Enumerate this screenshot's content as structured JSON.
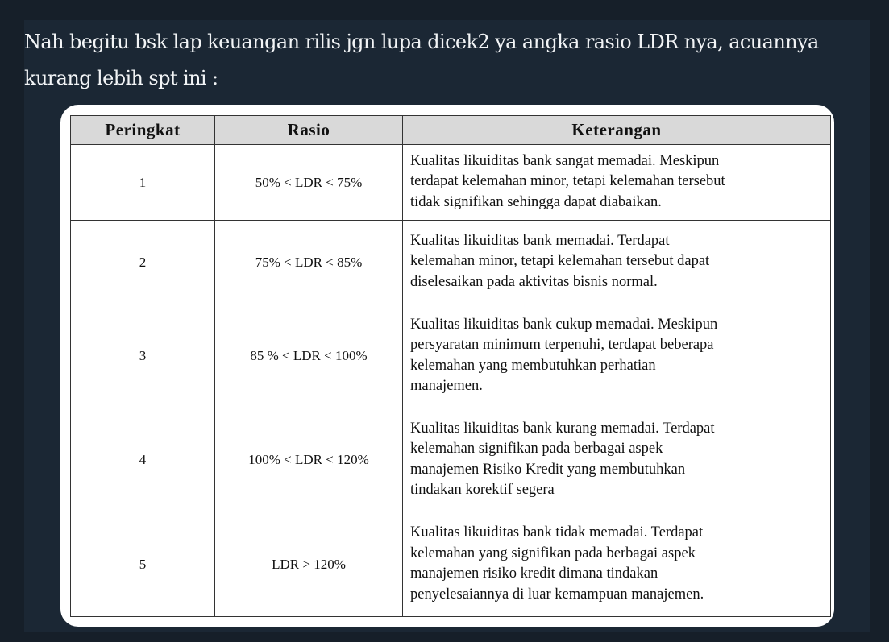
{
  "tweet": {
    "text_lines": [
      "Nah begitu bsk lap keuangan rilis jgn lupa dicek2 ya angka rasio LDR nya, acuannya",
      "kurang lebih spt ini :"
    ]
  },
  "table": {
    "headers": [
      "Peringkat",
      "Rasio",
      "Keterangan"
    ],
    "rows": [
      {
        "rank": "1",
        "ratio": "50% < LDR < 75%",
        "desc": [
          "Kualitas likuiditas bank sangat memadai. Meskipun",
          "terdapat kelemahan minor, tetapi kelemahan tersebut",
          "tidak signifikan sehingga dapat diabaikan."
        ]
      },
      {
        "rank": "2",
        "ratio": "75% < LDR < 85%",
        "desc": [
          "Kualitas likuiditas bank memadai. Terdapat",
          "kelemahan minor, tetapi kelemahan tersebut dapat",
          "diselesaikan pada aktivitas bisnis normal."
        ]
      },
      {
        "rank": "3",
        "ratio": "85 % < LDR < 100%",
        "desc": [
          "Kualitas likuiditas bank cukup memadai. Meskipun",
          "persyaratan minimum terpenuhi, terdapat beberapa",
          "kelemahan yang membutuhkan perhatian",
          "manajemen."
        ]
      },
      {
        "rank": "4",
        "ratio": "100% < LDR < 120%",
        "desc": [
          "Kualitas likuiditas bank kurang memadai. Terdapat",
          "kelemahan signifikan pada berbagai aspek",
          "manajemen Risiko Kredit yang membutuhkan",
          "tindakan korektif segera"
        ]
      },
      {
        "rank": "5",
        "ratio": "LDR > 120%",
        "desc": [
          "Kualitas likuiditas bank tidak memadai. Terdapat",
          "kelemahan yang signifikan pada berbagai aspek",
          "manajemen risiko kredit dimana tindakan",
          "penyelesaiannya di luar kemampuan manajemen."
        ]
      }
    ]
  }
}
